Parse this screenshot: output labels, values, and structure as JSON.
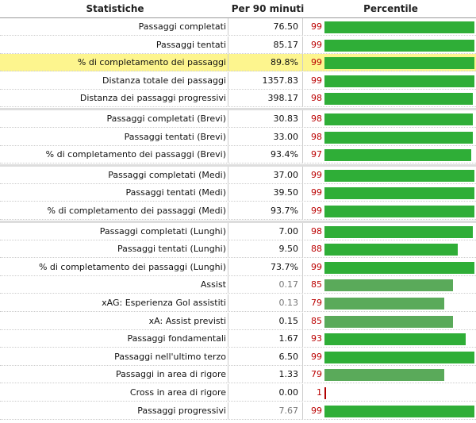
{
  "chart_data": {
    "type": "table",
    "columns": [
      "Statistiche",
      "Per 90 minuti",
      "Percentile"
    ],
    "groups": [
      [
        {
          "label": "Passaggi completati",
          "value": "76.50",
          "percentile": 99,
          "highlight": false,
          "muted_value": false,
          "light_bar": false
        },
        {
          "label": "Passaggi tentati",
          "value": "85.17",
          "percentile": 99,
          "highlight": false,
          "muted_value": false,
          "light_bar": false
        },
        {
          "label": "% di completamento dei passaggi",
          "value": "89.8%",
          "percentile": 99,
          "highlight": true,
          "muted_value": false,
          "light_bar": false
        },
        {
          "label": "Distanza totale dei passaggi",
          "value": "1357.83",
          "percentile": 99,
          "highlight": false,
          "muted_value": false,
          "light_bar": false
        },
        {
          "label": "Distanza dei passaggi progressivi",
          "value": "398.17",
          "percentile": 98,
          "highlight": false,
          "muted_value": false,
          "light_bar": false
        }
      ],
      [
        {
          "label": "Passaggi completati (Brevi)",
          "value": "30.83",
          "percentile": 98,
          "highlight": false,
          "muted_value": false,
          "light_bar": false
        },
        {
          "label": "Passaggi tentati (Brevi)",
          "value": "33.00",
          "percentile": 98,
          "highlight": false,
          "muted_value": false,
          "light_bar": false
        },
        {
          "label": "% di completamento dei passaggi (Brevi)",
          "value": "93.4%",
          "percentile": 97,
          "highlight": false,
          "muted_value": false,
          "light_bar": false
        }
      ],
      [
        {
          "label": "Passaggi completati (Medi)",
          "value": "37.00",
          "percentile": 99,
          "highlight": false,
          "muted_value": false,
          "light_bar": false
        },
        {
          "label": "Passaggi tentati (Medi)",
          "value": "39.50",
          "percentile": 99,
          "highlight": false,
          "muted_value": false,
          "light_bar": false
        },
        {
          "label": "% di completamento dei passaggi (Medi)",
          "value": "93.7%",
          "percentile": 99,
          "highlight": false,
          "muted_value": false,
          "light_bar": false
        }
      ],
      [
        {
          "label": "Passaggi completati (Lunghi)",
          "value": "7.00",
          "percentile": 98,
          "highlight": false,
          "muted_value": false,
          "light_bar": false
        },
        {
          "label": "Passaggi tentati (Lunghi)",
          "value": "9.50",
          "percentile": 88,
          "highlight": false,
          "muted_value": false,
          "light_bar": false
        },
        {
          "label": "% di completamento dei passaggi (Lunghi)",
          "value": "73.7%",
          "percentile": 99,
          "highlight": false,
          "muted_value": false,
          "light_bar": false
        },
        {
          "label": "Assist",
          "value": "0.17",
          "percentile": 85,
          "highlight": false,
          "muted_value": true,
          "light_bar": true
        },
        {
          "label": "xAG: Esperienza Gol assistiti",
          "value": "0.13",
          "percentile": 79,
          "highlight": false,
          "muted_value": true,
          "light_bar": true
        },
        {
          "label": "xA: Assist previsti",
          "value": "0.15",
          "percentile": 85,
          "highlight": false,
          "muted_value": false,
          "light_bar": true
        },
        {
          "label": "Passaggi fondamentali",
          "value": "1.67",
          "percentile": 93,
          "highlight": false,
          "muted_value": false,
          "light_bar": false
        },
        {
          "label": "Passaggi nell'ultimo terzo",
          "value": "6.50",
          "percentile": 99,
          "highlight": false,
          "muted_value": false,
          "light_bar": false
        },
        {
          "label": "Passaggi in area di rigore",
          "value": "1.33",
          "percentile": 79,
          "highlight": false,
          "muted_value": false,
          "light_bar": true
        },
        {
          "label": "Cross in area di rigore",
          "value": "0.00",
          "percentile": 1,
          "highlight": false,
          "muted_value": false,
          "light_bar": false
        },
        {
          "label": "Passaggi progressivi",
          "value": "7.67",
          "percentile": 99,
          "highlight": false,
          "muted_value": true,
          "light_bar": false
        }
      ]
    ],
    "percentile_range": [
      0,
      100
    ],
    "colors": {
      "bar": "#2fae37",
      "bar_light": "#5aaa5a",
      "low_bar": "#b00000",
      "percentile_text": "#b00000",
      "highlight": "#fdf58e"
    }
  }
}
